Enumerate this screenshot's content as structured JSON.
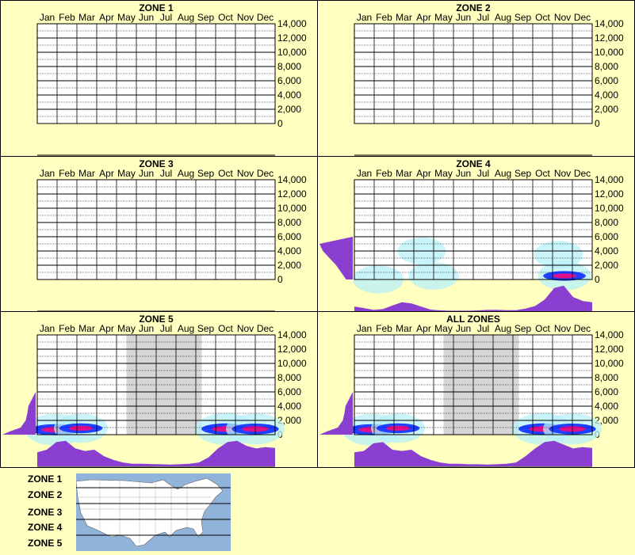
{
  "months": [
    "Jan",
    "Feb",
    "Mar",
    "Apr",
    "May",
    "Jun",
    "Jul",
    "Aug",
    "Sep",
    "Oct",
    "Nov",
    "Dec"
  ],
  "yticks": [
    "14,000",
    "12,000",
    "10,000",
    "8,000",
    "6,000",
    "4,000",
    "2,000",
    "0"
  ],
  "colors": {
    "background": "#ffffc0",
    "grid": "#000000",
    "profile": "#8b3fd0",
    "shade": "#d6d6d6",
    "density_low": "#b7f0f8",
    "density_mid": "#2040ff",
    "density_high": "#e0108a",
    "map_water": "#8fb3d9",
    "map_land": "#ffffff"
  },
  "chart_data": [
    {
      "type": "heatmap",
      "title": "ZONE 1",
      "ylim": [
        0,
        14000
      ],
      "shaded_months": [],
      "has_data": false,
      "elevation_profile": [],
      "monthly_profile": [],
      "hotspots": []
    },
    {
      "type": "heatmap",
      "title": "ZONE 2",
      "ylim": [
        0,
        14000
      ],
      "shaded_months": [],
      "has_data": false,
      "elevation_profile": [],
      "monthly_profile": [],
      "hotspots": []
    },
    {
      "type": "heatmap",
      "title": "ZONE 3",
      "ylim": [
        0,
        14000
      ],
      "shaded_months": [],
      "has_data": false,
      "elevation_profile": [],
      "monthly_profile": [],
      "hotspots": []
    },
    {
      "type": "heatmap",
      "title": "ZONE 4",
      "ylim": [
        0,
        14000
      ],
      "shaded_months": [],
      "has_data": true,
      "elevation_profile": [
        [
          0,
          0.2
        ],
        [
          1000,
          0.35
        ],
        [
          2000,
          0.5
        ],
        [
          3000,
          0.7
        ],
        [
          4000,
          0.9
        ],
        [
          5000,
          1.0
        ],
        [
          6000,
          0
        ]
      ],
      "monthly_profile": [
        0.18,
        0.12,
        0.05,
        0.08,
        0.22,
        0.35,
        0.3,
        0.18,
        0.06,
        0.03,
        0.02,
        0.02,
        0.02,
        0.03,
        0.05,
        0.05,
        0.04,
        0.04,
        0.1,
        0.2,
        0.45,
        0.9,
        1.0,
        0.55,
        0.4,
        0.35
      ],
      "hotspots": [
        {
          "month": 1.2,
          "elev": 0,
          "intensity": 0.4
        },
        {
          "month": 3.4,
          "elev": 4000,
          "intensity": 0.25
        },
        {
          "month": 4.0,
          "elev": 500,
          "intensity": 0.35
        },
        {
          "month": 10.3,
          "elev": 3500,
          "intensity": 0.3
        },
        {
          "month": 10.6,
          "elev": 500,
          "intensity": 0.55
        }
      ]
    },
    {
      "type": "heatmap",
      "title": "ZONE 5",
      "ylim": [
        0,
        14000
      ],
      "shaded_months": [
        4.5,
        8.3
      ],
      "has_data": true,
      "elevation_profile": [
        [
          0,
          1.0
        ],
        [
          500,
          0.75
        ],
        [
          1000,
          0.45
        ],
        [
          2000,
          0.3
        ],
        [
          3000,
          0.25
        ],
        [
          4000,
          0.22
        ],
        [
          6000,
          0
        ]
      ],
      "monthly_profile": [
        0.55,
        0.65,
        0.95,
        1.0,
        0.7,
        0.6,
        0.65,
        0.4,
        0.25,
        0.15,
        0.1,
        0.1,
        0.09,
        0.08,
        0.07,
        0.08,
        0.1,
        0.15,
        0.35,
        0.7,
        0.95,
        1.0,
        0.8,
        0.7,
        0.75,
        0.72
      ],
      "hotspots": [
        {
          "month": 0.9,
          "elev": 700,
          "intensity": 1.0
        },
        {
          "month": 2.2,
          "elev": 900,
          "intensity": 0.6
        },
        {
          "month": 9.5,
          "elev": 800,
          "intensity": 1.0
        },
        {
          "month": 11.0,
          "elev": 800,
          "intensity": 0.9
        }
      ]
    },
    {
      "type": "heatmap",
      "title": "ALL ZONES",
      "ylim": [
        0,
        14000
      ],
      "shaded_months": [
        4.5,
        8.3
      ],
      "has_data": true,
      "elevation_profile": [
        [
          0,
          1.0
        ],
        [
          500,
          0.75
        ],
        [
          1000,
          0.45
        ],
        [
          2000,
          0.3
        ],
        [
          3000,
          0.25
        ],
        [
          4000,
          0.22
        ],
        [
          6000,
          0
        ]
      ],
      "monthly_profile": [
        0.55,
        0.6,
        0.9,
        0.95,
        0.65,
        0.6,
        0.65,
        0.4,
        0.25,
        0.15,
        0.1,
        0.1,
        0.08,
        0.08,
        0.07,
        0.08,
        0.1,
        0.15,
        0.4,
        0.7,
        0.95,
        1.0,
        0.85,
        0.7,
        0.75,
        0.72
      ],
      "hotspots": [
        {
          "month": 0.9,
          "elev": 700,
          "intensity": 1.0
        },
        {
          "month": 2.2,
          "elev": 900,
          "intensity": 0.6
        },
        {
          "month": 9.5,
          "elev": 800,
          "intensity": 1.0
        },
        {
          "month": 11.0,
          "elev": 800,
          "intensity": 0.9
        }
      ]
    }
  ],
  "legend": {
    "zones": [
      "ZONE 1",
      "ZONE 2",
      "ZONE 3",
      "ZONE 4",
      "ZONE 5"
    ]
  }
}
